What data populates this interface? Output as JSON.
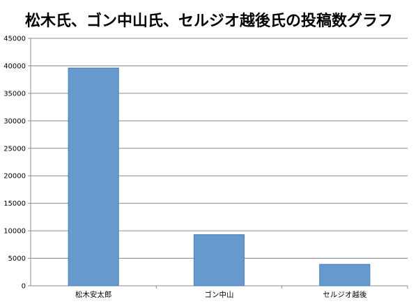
{
  "chart_data": {
    "type": "bar",
    "title": "松木氏、ゴン中山氏、セルジオ越後氏の投稿数グラフ",
    "categories": [
      "松木安太郎",
      "ゴン中山",
      "セルジオ越後"
    ],
    "values": [
      39600,
      9300,
      3900
    ],
    "ylim": [
      0,
      45000
    ],
    "yticks": [
      0,
      5000,
      10000,
      15000,
      20000,
      25000,
      30000,
      35000,
      40000,
      45000
    ],
    "xlabel": "",
    "ylabel": "",
    "grid": true,
    "legend": "none",
    "colors": {
      "bar_fill": "#6699CC",
      "bar_stroke": "#4A7EBB",
      "grid": "#8C8C8C",
      "axis": "#8C8C8C"
    }
  }
}
